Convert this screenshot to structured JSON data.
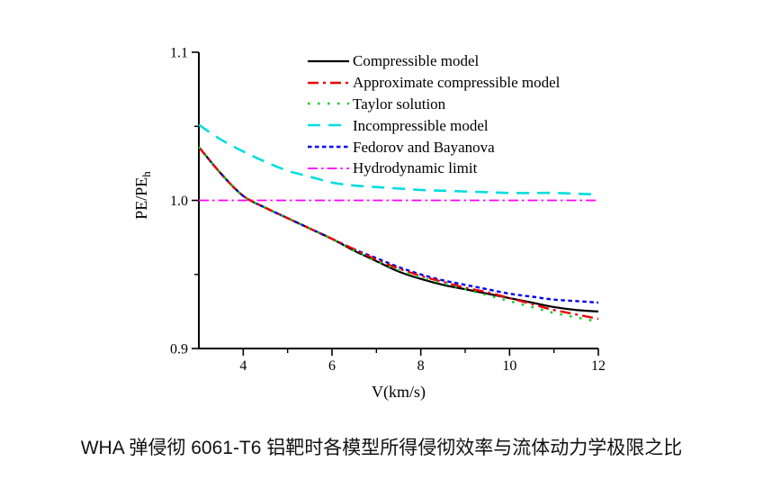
{
  "figure": {
    "caption": "WHA 弹侵彻 6061-T6 铝靶时各模型所得侵彻效率与流体动力学极限之比"
  },
  "chart_data": {
    "type": "line",
    "title": "",
    "xlabel": "V(km/s)",
    "ylabel_main": "PE/PE",
    "ylabel_sub": "h",
    "xlim": [
      3,
      12
    ],
    "ylim": [
      0.9,
      1.1
    ],
    "grid": false,
    "legend_position": "upper center-right, no frame",
    "x_major_ticks": [
      4,
      6,
      8,
      10,
      12
    ],
    "x_tick_labels": [
      "4",
      "6",
      "8",
      "10",
      "12"
    ],
    "x_minor_ticks": [
      5,
      7,
      9,
      11
    ],
    "y_major_ticks": [
      0.9,
      1.0,
      1.1
    ],
    "y_tick_labels": [
      "0.9",
      "1.0",
      "1.1"
    ],
    "y_minor_ticks": [
      0.95,
      1.05
    ],
    "x": [
      3,
      3.5,
      4,
      4.5,
      5,
      5.5,
      6,
      6.5,
      7,
      7.5,
      8,
      8.5,
      9,
      9.5,
      10,
      10.5,
      11,
      11.5,
      12
    ],
    "series": [
      {
        "name": "Compressible model",
        "color": "#000000",
        "dash": "",
        "width": 2.2,
        "values": [
          1.036,
          1.018,
          1.003,
          0.995,
          0.988,
          0.981,
          0.974,
          0.966,
          0.959,
          0.952,
          0.947,
          0.943,
          0.94,
          0.937,
          0.934,
          0.931,
          0.928,
          0.926,
          0.925
        ]
      },
      {
        "name": "Approximate compressible model",
        "color": "#ee0000",
        "dash": "12 5 3 5",
        "width": 2.4,
        "values": [
          1.036,
          1.018,
          1.003,
          0.995,
          0.988,
          0.981,
          0.974,
          0.967,
          0.96,
          0.954,
          0.949,
          0.945,
          0.941,
          0.938,
          0.934,
          0.93,
          0.926,
          0.923,
          0.92
        ]
      },
      {
        "name": "Taylor solution",
        "color": "#00cc22",
        "dash": "2.5 8.5",
        "width": 2.4,
        "values": [
          1.036,
          1.018,
          1.003,
          0.995,
          0.988,
          0.981,
          0.974,
          0.966,
          0.959,
          0.953,
          0.948,
          0.944,
          0.94,
          0.936,
          0.932,
          0.928,
          0.924,
          0.921,
          0.918
        ]
      },
      {
        "name": "Incompressible model",
        "color": "#00dde0",
        "dash": "14 9",
        "width": 2.6,
        "values": [
          1.051,
          1.041,
          1.033,
          1.026,
          1.02,
          1.016,
          1.012,
          1.01,
          1.009,
          1.008,
          1.007,
          1.0065,
          1.006,
          1.0055,
          1.005,
          1.005,
          1.005,
          1.0045,
          1.004
        ]
      },
      {
        "name": "Fedorov and Bayanova",
        "color": "#0000ee",
        "dash": "4.5 3.5",
        "width": 2.4,
        "values": [
          1.036,
          1.018,
          1.003,
          0.995,
          0.988,
          0.981,
          0.974,
          0.967,
          0.961,
          0.955,
          0.95,
          0.946,
          0.943,
          0.94,
          0.937,
          0.935,
          0.933,
          0.932,
          0.931
        ]
      },
      {
        "name": "Hydrodynamic limit",
        "color": "#ff00ff",
        "dash": "11 4 2.5 4",
        "width": 1.8,
        "values": [
          1.0,
          1.0,
          1.0,
          1.0,
          1.0,
          1.0,
          1.0,
          1.0,
          1.0,
          1.0,
          1.0,
          1.0,
          1.0,
          1.0,
          1.0,
          1.0,
          1.0,
          1.0,
          1.0
        ]
      }
    ]
  }
}
